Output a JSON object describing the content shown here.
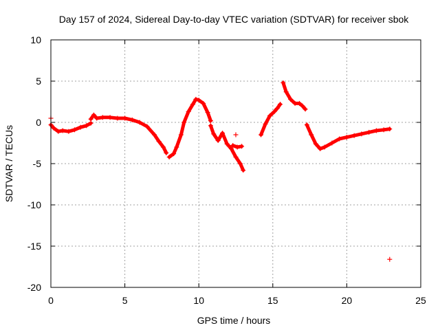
{
  "chart_data": {
    "type": "scatter",
    "title": "Day 157 of 2024, Sidereal Day-to-day VTEC variation (SDTVAR) for receiver sbok",
    "xlabel": "GPS time / hours",
    "ylabel": "SDTVAR / TECUs",
    "xlim": [
      0,
      25
    ],
    "ylim": [
      -20,
      10
    ],
    "grid": true,
    "xticks": [
      0,
      5,
      10,
      15,
      20,
      25
    ],
    "yticks": [
      -20,
      -15,
      -10,
      -5,
      0,
      5,
      10
    ],
    "marker": "+",
    "color": "#ff0000",
    "series": [
      {
        "name": "SDTVAR",
        "segments": [
          {
            "x": [
              0.0,
              0.2,
              0.5,
              0.8,
              1.2,
              1.6,
              2.0,
              2.4,
              2.7
            ],
            "y": [
              -0.3,
              -0.7,
              -1.1,
              -1.0,
              -1.1,
              -0.9,
              -0.6,
              -0.4,
              -0.1
            ]
          },
          {
            "x": [
              2.7,
              2.9,
              3.1,
              3.5,
              4.0,
              4.5,
              5.0,
              5.5,
              6.0,
              6.5,
              7.0,
              7.3,
              7.6,
              7.8
            ],
            "y": [
              0.4,
              0.9,
              0.5,
              0.6,
              0.6,
              0.5,
              0.5,
              0.3,
              0.0,
              -0.5,
              -1.5,
              -2.3,
              -3.0,
              -3.7
            ]
          },
          {
            "x": [
              8.0,
              8.3,
              8.5,
              8.8,
              9.0,
              9.3,
              9.6,
              9.8,
              10.0,
              10.3,
              10.6,
              10.8
            ],
            "y": [
              -4.2,
              -3.8,
              -3.0,
              -1.5,
              0.0,
              1.3,
              2.2,
              2.8,
              2.7,
              2.3,
              1.2,
              0.2
            ]
          },
          {
            "x": [
              10.8,
              11.0,
              11.3,
              11.6,
              11.9,
              12.2,
              12.5,
              12.8,
              13.0
            ],
            "y": [
              -0.4,
              -1.4,
              -2.2,
              -1.3,
              -2.6,
              -3.2,
              -4.2,
              -5.0,
              -5.8
            ]
          },
          {
            "x": [
              12.3,
              12.6,
              12.9
            ],
            "y": [
              -2.8,
              -3.0,
              -2.9
            ]
          },
          {
            "x": [
              14.2,
              14.5,
              14.8,
              15.1,
              15.3,
              15.5
            ],
            "y": [
              -1.5,
              -0.2,
              0.8,
              1.3,
              1.7,
              2.2
            ]
          },
          {
            "x": [
              15.7,
              15.9,
              16.2,
              16.5,
              16.8,
              17.0,
              17.2
            ],
            "y": [
              4.8,
              3.7,
              2.8,
              2.3,
              2.3,
              2.0,
              1.6
            ]
          },
          {
            "x": [
              17.3,
              17.6,
              17.9,
              18.2,
              18.5,
              19.0,
              19.5,
              20.0,
              20.5,
              21.0,
              21.5,
              22.0,
              22.5,
              22.9
            ],
            "y": [
              -0.3,
              -1.5,
              -2.6,
              -3.2,
              -3.0,
              -2.5,
              -2.0,
              -1.8,
              -1.6,
              -1.4,
              -1.2,
              -1.0,
              -0.9,
              -0.8
            ]
          }
        ],
        "outliers": [
          {
            "x": 0.0,
            "y": 0.5
          },
          {
            "x": 12.5,
            "y": -1.5
          },
          {
            "x": 22.9,
            "y": -16.6
          }
        ]
      }
    ]
  }
}
